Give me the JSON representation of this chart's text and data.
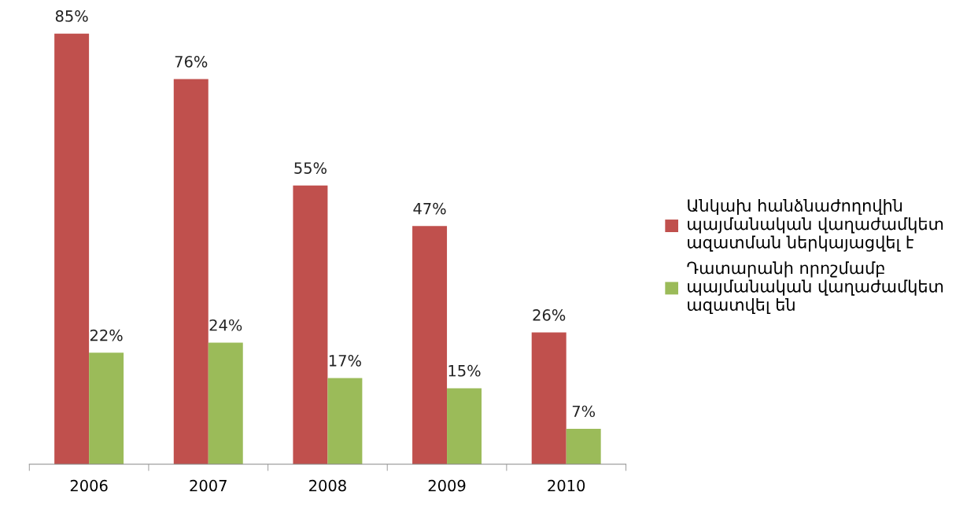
{
  "chart_data": {
    "type": "bar",
    "categories": [
      "2006",
      "2007",
      "2008",
      "2009",
      "2010"
    ],
    "series": [
      {
        "name": "Անկախ հանձնաժողովին\nպայմանական վաղաժամկետ\nազատման ներկայացվել է",
        "color": "#c0504d",
        "values": [
          85,
          76,
          55,
          47,
          26
        ],
        "value_labels": [
          "85%",
          "76%",
          "55%",
          "47%",
          "26%"
        ]
      },
      {
        "name": "Դատարանի որոշմամբ\nպայմանական վաղաժամկետ\nազատվել են",
        "color": "#9bbb59",
        "values": [
          22,
          24,
          17,
          15,
          7
        ],
        "value_labels": [
          "22%",
          "24%",
          "17%",
          "15%",
          "7%"
        ]
      }
    ],
    "legend": "right",
    "grid": false
  }
}
